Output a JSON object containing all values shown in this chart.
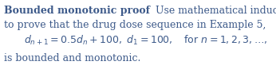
{
  "background_color": "#ffffff",
  "text_color": "#3d5a8a",
  "bold_title": "Bounded monotonic proof",
  "line1_normal": "Use mathematical induction",
  "line2": "to prove that the drug dose sequence in Example 5,",
  "formula": "$d_{n+1} = 0.5d_n + 100,\\ d_1 = 100, \\quad \\mathrm{for}\\ n = 1, 2, 3, \\ldots,$",
  "line4": "is bounded and monotonic.",
  "font_size": 9.0,
  "figsize": [
    3.46,
    0.87
  ],
  "dpi": 100
}
